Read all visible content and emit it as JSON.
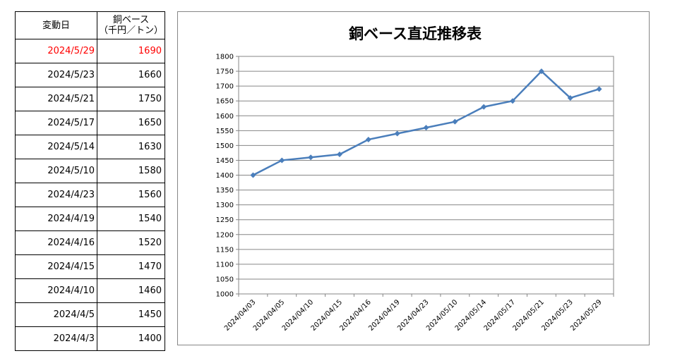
{
  "table": {
    "header_date": "変動日",
    "header_price_line1": "銅ベース",
    "header_price_line2": "（千円／トン）",
    "rows": [
      {
        "date": "2024/5/29",
        "price": "1690"
      },
      {
        "date": "2024/5/23",
        "price": "1660"
      },
      {
        "date": "2024/5/21",
        "price": "1750"
      },
      {
        "date": "2024/5/17",
        "price": "1650"
      },
      {
        "date": "2024/5/14",
        "price": "1630"
      },
      {
        "date": "2024/5/10",
        "price": "1580"
      },
      {
        "date": "2024/4/23",
        "price": "1560"
      },
      {
        "date": "2024/4/19",
        "price": "1540"
      },
      {
        "date": "2024/4/16",
        "price": "1520"
      },
      {
        "date": "2024/4/15",
        "price": "1470"
      },
      {
        "date": "2024/4/10",
        "price": "1460"
      },
      {
        "date": "2024/4/5",
        "price": "1450"
      },
      {
        "date": "2024/4/3",
        "price": "1400"
      }
    ],
    "latest_color": "#ff0000"
  },
  "chart_data": {
    "type": "line",
    "title": "銅ベース直近推移表",
    "xlabel": "",
    "ylabel": "",
    "categories": [
      "2024/04/03",
      "2024/04/05",
      "2024/04/10",
      "2024/04/15",
      "2024/04/16",
      "2024/04/19",
      "2024/04/23",
      "2024/05/10",
      "2024/05/14",
      "2024/05/17",
      "2024/05/21",
      "2024/05/23",
      "2024/05/29"
    ],
    "series": [
      {
        "values": [
          1400,
          1450,
          1460,
          1470,
          1520,
          1540,
          1560,
          1580,
          1630,
          1650,
          1750,
          1660,
          1690
        ],
        "color": "#4a7ebb",
        "marker": "diamond"
      }
    ],
    "ylim": [
      1000,
      1800
    ],
    "yticks": [
      1000,
      1050,
      1100,
      1150,
      1200,
      1250,
      1300,
      1350,
      1400,
      1450,
      1500,
      1550,
      1600,
      1650,
      1700,
      1750,
      1800
    ],
    "grid": true,
    "legend": "none"
  }
}
